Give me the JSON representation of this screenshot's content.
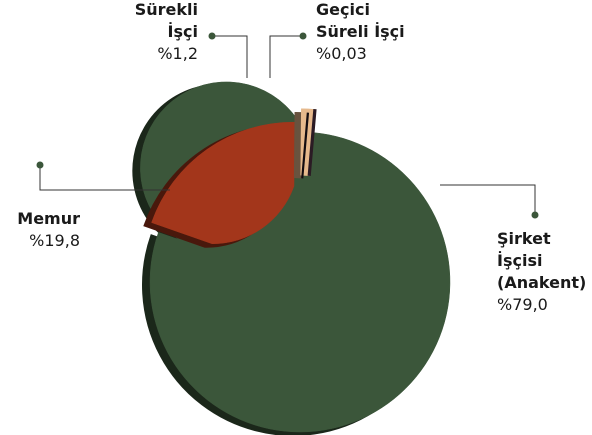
{
  "chart_data": {
    "type": "donut",
    "categories": [
      "Şirket\nİşçisi\n(Anakent)",
      "Memur",
      "Sürekli\nİşçi",
      "Geçici\nSüreli İşçi"
    ],
    "values": [
      79.0,
      19.8,
      1.2,
      0.03
    ],
    "value_labels": [
      "%79,0",
      "%19,8",
      "%1,2",
      "%0,03"
    ],
    "colors": [
      "#3b563a",
      "#a3361b",
      "#e6b98c",
      "#2b1b24"
    ]
  }
}
